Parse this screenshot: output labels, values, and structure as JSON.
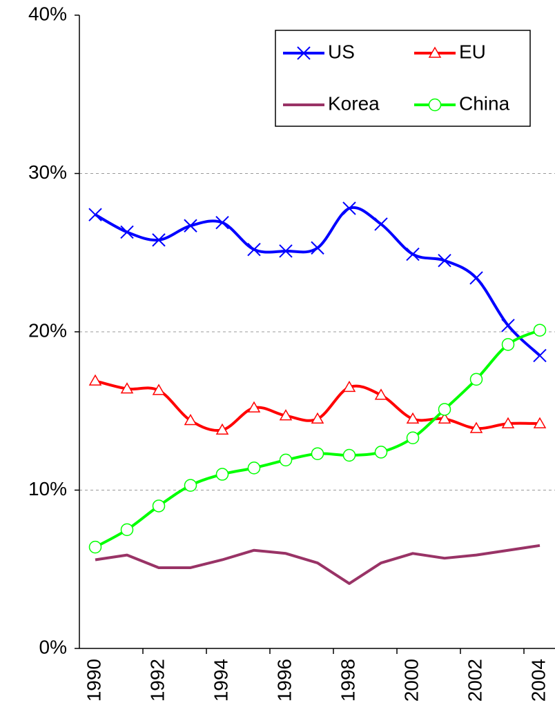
{
  "chart_data": {
    "type": "line",
    "categories": [
      "1990",
      null,
      "1992",
      null,
      "1994",
      null,
      "1996",
      null,
      "1998",
      null,
      "2000",
      null,
      "2002",
      null,
      "2004"
    ],
    "ylim": [
      0,
      40
    ],
    "yticks": [
      {
        "value": 0,
        "label": "0%"
      },
      {
        "value": 10,
        "label": "10%"
      },
      {
        "value": 20,
        "label": "20%"
      },
      {
        "value": 30,
        "label": "30%"
      },
      {
        "value": 40,
        "label": "40%"
      }
    ],
    "grid": true,
    "legend": "upper right",
    "series": [
      {
        "name": "US",
        "color": "#0000ff",
        "marker": "x",
        "smooth": true,
        "values": [
          27.4,
          26.3,
          25.8,
          26.7,
          26.9,
          25.2,
          25.1,
          25.3,
          27.8,
          26.8,
          24.9,
          24.5,
          23.4,
          20.4,
          18.5
        ]
      },
      {
        "name": "EU",
        "color": "#ff0000",
        "marker": "triangle",
        "smooth": true,
        "values": [
          16.9,
          16.4,
          16.3,
          14.4,
          13.8,
          15.2,
          14.7,
          14.5,
          16.5,
          16.0,
          14.5,
          14.5,
          13.9,
          14.2,
          14.2
        ]
      },
      {
        "name": "Korea",
        "color": "#993366",
        "marker": "none",
        "smooth": false,
        "values": [
          5.6,
          5.9,
          5.1,
          5.1,
          5.6,
          6.2,
          6.0,
          5.4,
          4.1,
          5.4,
          6.0,
          5.7,
          5.9,
          6.2,
          6.5
        ]
      },
      {
        "name": "China",
        "color": "#00ff00",
        "marker": "circle",
        "smooth": true,
        "values": [
          6.4,
          7.5,
          9.0,
          10.3,
          11.0,
          11.4,
          11.9,
          12.3,
          12.2,
          12.4,
          13.3,
          15.1,
          17.0,
          19.2,
          20.1
        ]
      }
    ]
  }
}
